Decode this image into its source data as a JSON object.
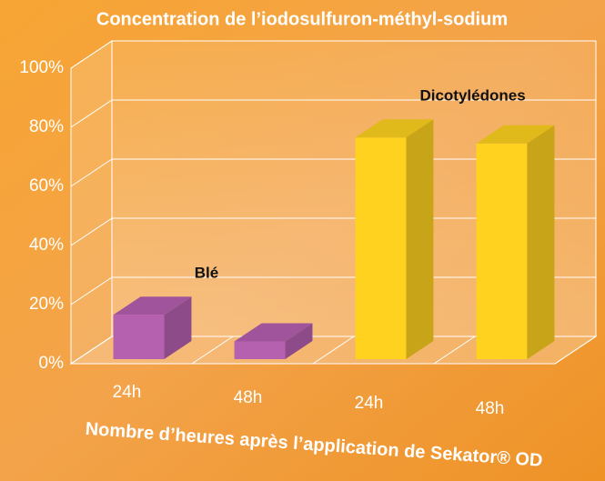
{
  "chart_data": {
    "type": "bar3d",
    "title": "Concentration de l’iodosulfuron-méthyl-sodium",
    "x_label": "Nombre d’heures après l’application de Sekator® OD",
    "categories": [
      "24h",
      "48h",
      "24h",
      "48h"
    ],
    "series": [
      {
        "name": "Blé",
        "color": "#b660b0",
        "values": [
          15,
          6,
          null,
          null
        ]
      },
      {
        "name": "Dicotylédones",
        "color": "#ffd21f",
        "values": [
          null,
          null,
          75,
          73
        ]
      }
    ],
    "ylim": [
      0,
      100
    ],
    "yticks": [
      {
        "value": 0,
        "label": "0%"
      },
      {
        "value": 20,
        "label": "20%"
      },
      {
        "value": 40,
        "label": "40%"
      },
      {
        "value": 60,
        "label": "60%"
      },
      {
        "value": 80,
        "label": "80%"
      },
      {
        "value": 100,
        "label": "100%"
      }
    ],
    "grid": true
  }
}
